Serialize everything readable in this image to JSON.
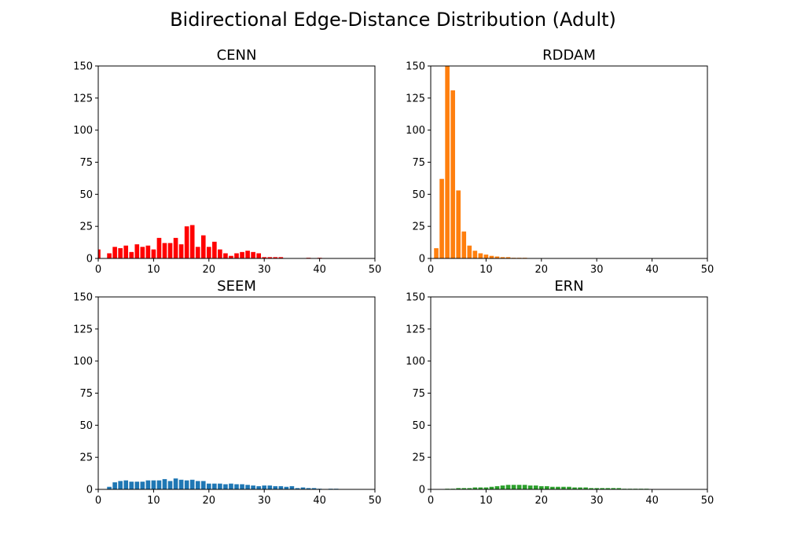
{
  "figure": {
    "suptitle": "Bidirectional Edge-Distance Distribution (Adult)"
  },
  "chart_data": [
    {
      "type": "bar",
      "title": "CENN",
      "color": "#ff0000",
      "xlim": [
        0,
        50
      ],
      "ylim": [
        0,
        150
      ],
      "xticks": [
        0,
        10,
        20,
        30,
        40,
        50
      ],
      "yticks": [
        0,
        25,
        50,
        75,
        100,
        125,
        150
      ],
      "x": [
        0,
        1,
        2,
        3,
        4,
        5,
        6,
        7,
        8,
        9,
        10,
        11,
        12,
        13,
        14,
        15,
        16,
        17,
        18,
        19,
        20,
        21,
        22,
        23,
        24,
        25,
        26,
        27,
        28,
        29,
        30,
        31,
        32,
        33,
        34,
        35,
        36,
        37,
        38,
        39,
        40,
        41,
        42,
        43,
        44,
        45,
        46,
        47,
        48,
        49
      ],
      "values": [
        7,
        0,
        4,
        9,
        8,
        10,
        5,
        11,
        9,
        10,
        7,
        16,
        12,
        12,
        16,
        11,
        25,
        26,
        9,
        18,
        9,
        13,
        7,
        4,
        2,
        4,
        5,
        6,
        5,
        4,
        1,
        1,
        1,
        1,
        0,
        0,
        0,
        0,
        0.5,
        0,
        0.5,
        0,
        0,
        0,
        0,
        0,
        0,
        0,
        0,
        0
      ]
    },
    {
      "type": "bar",
      "title": "RDDAM",
      "color": "#ff7f0e",
      "xlim": [
        0,
        50
      ],
      "ylim": [
        0,
        150
      ],
      "xticks": [
        0,
        10,
        20,
        30,
        40,
        50
      ],
      "yticks": [
        0,
        25,
        50,
        75,
        100,
        125,
        150
      ],
      "x": [
        0,
        1,
        2,
        3,
        4,
        5,
        6,
        7,
        8,
        9,
        10,
        11,
        12,
        13,
        14,
        15,
        16,
        17,
        18,
        19,
        20,
        21,
        22,
        23,
        24,
        25,
        26,
        27,
        28,
        29,
        30,
        31,
        32,
        33,
        34,
        35,
        36,
        37,
        38,
        39,
        40,
        41,
        42,
        43,
        44,
        45,
        46,
        47,
        48,
        49
      ],
      "values": [
        0,
        8,
        62,
        150,
        131,
        53,
        21,
        10,
        6,
        4,
        3,
        2,
        1.5,
        1,
        1,
        0.5,
        0.5,
        0.5,
        0,
        0,
        0,
        0,
        0,
        0,
        0,
        0,
        0,
        0,
        0,
        0,
        0,
        0,
        0,
        0,
        0,
        0,
        0,
        0,
        0,
        0,
        0,
        0,
        0,
        0,
        0,
        0,
        0,
        0,
        0,
        0
      ]
    },
    {
      "type": "bar",
      "title": "SEEM",
      "color": "#1f77b4",
      "xlim": [
        0,
        50
      ],
      "ylim": [
        0,
        150
      ],
      "xticks": [
        0,
        10,
        20,
        30,
        40,
        50
      ],
      "yticks": [
        0,
        25,
        50,
        75,
        100,
        125,
        150
      ],
      "x": [
        0,
        1,
        2,
        3,
        4,
        5,
        6,
        7,
        8,
        9,
        10,
        11,
        12,
        13,
        14,
        15,
        16,
        17,
        18,
        19,
        20,
        21,
        22,
        23,
        24,
        25,
        26,
        27,
        28,
        29,
        30,
        31,
        32,
        33,
        34,
        35,
        36,
        37,
        38,
        39,
        40,
        41,
        42,
        43,
        44,
        45,
        46,
        47,
        48,
        49
      ],
      "values": [
        0,
        0,
        2,
        5.5,
        6.5,
        7,
        6,
        6,
        6,
        7,
        7,
        7,
        8,
        6.5,
        8.5,
        7.5,
        7,
        7.5,
        6.5,
        6.5,
        4.5,
        4.5,
        4.5,
        4,
        4.5,
        4,
        4,
        3.5,
        3,
        2.5,
        3,
        3,
        2.5,
        2.5,
        2,
        2.5,
        1,
        1.5,
        1,
        1,
        0.5,
        0,
        0.5,
        0.5,
        0,
        0,
        0,
        0,
        0,
        0
      ]
    },
    {
      "type": "bar",
      "title": "ERN",
      "color": "#2ca02c",
      "xlim": [
        0,
        50
      ],
      "ylim": [
        0,
        150
      ],
      "xticks": [
        0,
        10,
        20,
        30,
        40,
        50
      ],
      "yticks": [
        0,
        25,
        50,
        75,
        100,
        125,
        150
      ],
      "x": [
        0,
        1,
        2,
        3,
        4,
        5,
        6,
        7,
        8,
        9,
        10,
        11,
        12,
        13,
        14,
        15,
        16,
        17,
        18,
        19,
        20,
        21,
        22,
        23,
        24,
        25,
        26,
        27,
        28,
        29,
        30,
        31,
        32,
        33,
        34,
        35,
        36,
        37,
        38,
        39,
        40,
        41,
        42,
        43,
        44,
        45,
        46,
        47,
        48,
        49
      ],
      "values": [
        0,
        0,
        0,
        0.5,
        0.5,
        1,
        1,
        1,
        1.5,
        1.5,
        1.5,
        2,
        2.5,
        3,
        3.5,
        3.5,
        3.5,
        3.5,
        3,
        3,
        2.5,
        2.5,
        2,
        2,
        2,
        2,
        1.5,
        1.5,
        1.5,
        1,
        1,
        1,
        1,
        1,
        1,
        0.5,
        0.5,
        0.5,
        0.5,
        0.5,
        0,
        0,
        0,
        0,
        0,
        0,
        0,
        0,
        0,
        0
      ]
    }
  ]
}
